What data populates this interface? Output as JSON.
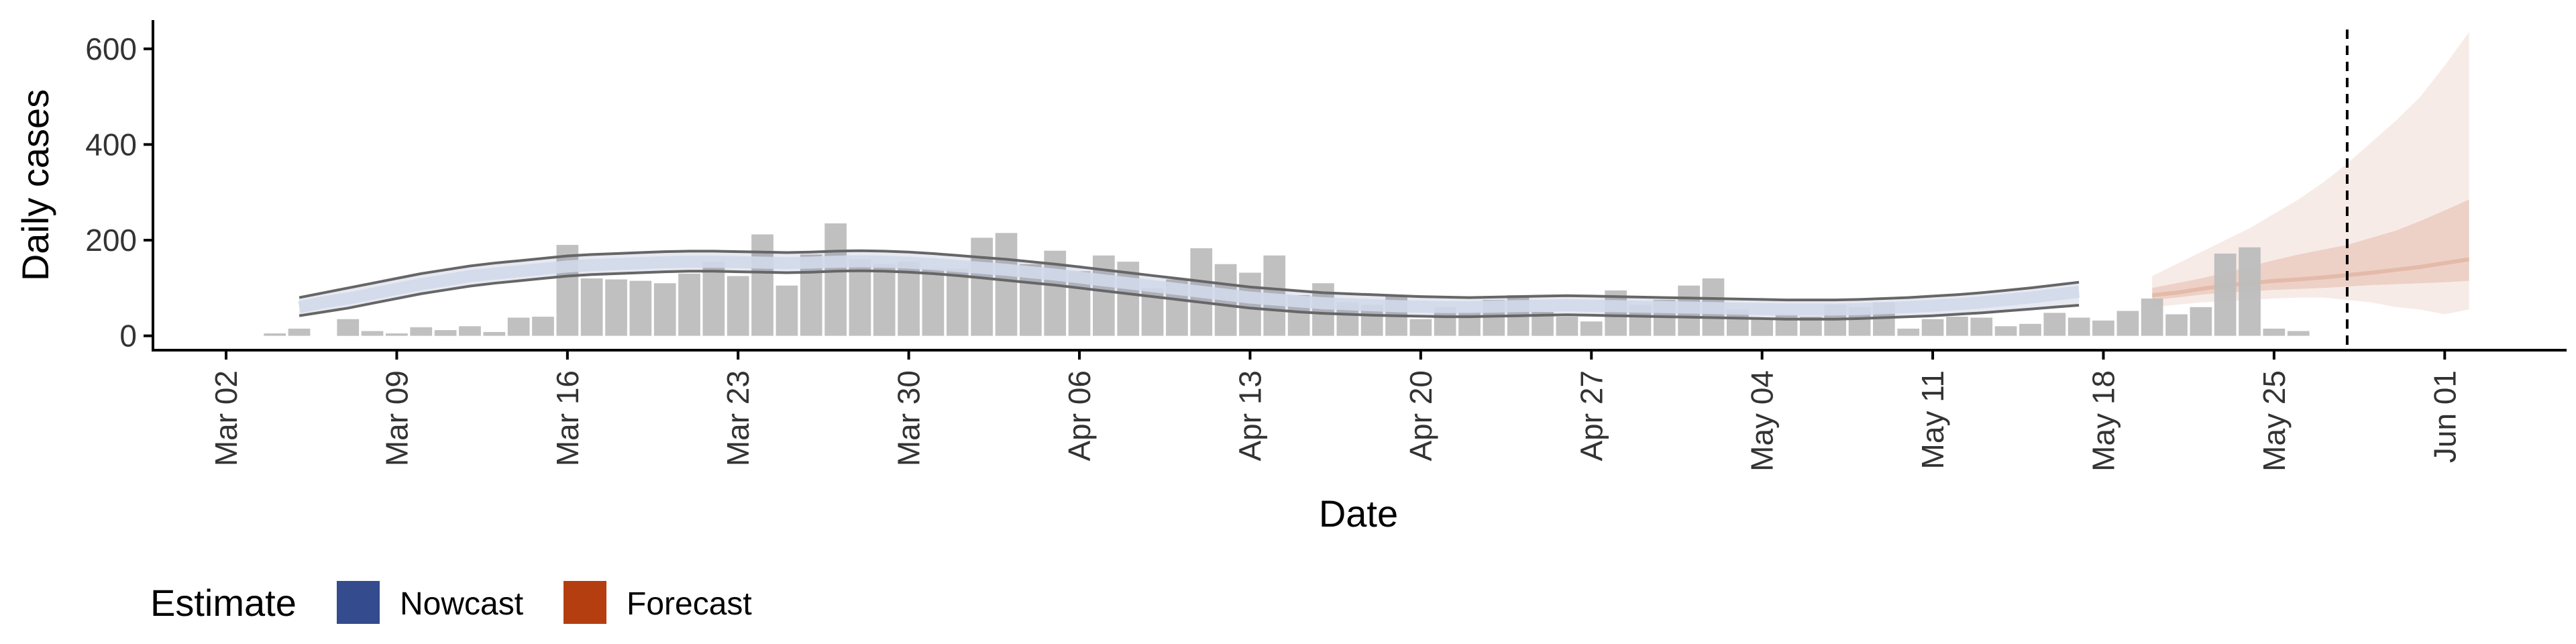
{
  "chart_data": {
    "type": "bar",
    "title": "",
    "xlabel": "Date",
    "ylabel": "Daily cases",
    "x_domain": [
      "2020-02-28",
      "2020-06-06"
    ],
    "ylim": [
      -30,
      660
    ],
    "yticks": [
      0,
      200,
      400,
      600
    ],
    "xticks": [
      {
        "date": "2020-03-02",
        "label": "Mar 02"
      },
      {
        "date": "2020-03-09",
        "label": "Mar 09"
      },
      {
        "date": "2020-03-16",
        "label": "Mar 16"
      },
      {
        "date": "2020-03-23",
        "label": "Mar 23"
      },
      {
        "date": "2020-03-30",
        "label": "Mar 30"
      },
      {
        "date": "2020-04-06",
        "label": "Apr 06"
      },
      {
        "date": "2020-04-13",
        "label": "Apr 13"
      },
      {
        "date": "2020-04-20",
        "label": "Apr 20"
      },
      {
        "date": "2020-04-27",
        "label": "Apr 27"
      },
      {
        "date": "2020-05-04",
        "label": "May 04"
      },
      {
        "date": "2020-05-11",
        "label": "May 11"
      },
      {
        "date": "2020-05-18",
        "label": "May 18"
      },
      {
        "date": "2020-05-25",
        "label": "May 25"
      },
      {
        "date": "2020-06-01",
        "label": "Jun 01"
      }
    ],
    "cases": {
      "start_date": "2020-03-04",
      "values": [
        5,
        15,
        0,
        35,
        10,
        5,
        18,
        12,
        20,
        8,
        38,
        40,
        190,
        120,
        118,
        115,
        110,
        130,
        155,
        125,
        212,
        105,
        170,
        235,
        160,
        150,
        155,
        140,
        140,
        205,
        215,
        150,
        178,
        135,
        168,
        155,
        100,
        118,
        183,
        150,
        132,
        168,
        85,
        110,
        70,
        65,
        85,
        35,
        60,
        50,
        75,
        85,
        50,
        40,
        30,
        95,
        65,
        75,
        105,
        120,
        55,
        35,
        45,
        40,
        65,
        60,
        70,
        15,
        35,
        40,
        38,
        20,
        25,
        48,
        38,
        32,
        52,
        78,
        45,
        60,
        172,
        185,
        15,
        10
      ]
    },
    "nowcast": {
      "start_date": "2020-03-05",
      "median": [
        60,
        70,
        78,
        88,
        98,
        108,
        116,
        125,
        130,
        135,
        140,
        145,
        148,
        150,
        152,
        154,
        155,
        155,
        154,
        153,
        152,
        153,
        155,
        156,
        155,
        153,
        150,
        146,
        142,
        138,
        133,
        128,
        122,
        116,
        110,
        104,
        98,
        92,
        86,
        80,
        76,
        72,
        68,
        66,
        64,
        62,
        61,
        60,
        60,
        61,
        62,
        63,
        64,
        63,
        62,
        61,
        60,
        59,
        58,
        57,
        56,
        55,
        55,
        55,
        56,
        58,
        60,
        63,
        66,
        70,
        75,
        80,
        86,
        92
      ],
      "lower_90": [
        42,
        50,
        58,
        68,
        78,
        88,
        96,
        104,
        110,
        115,
        120,
        125,
        128,
        130,
        132,
        134,
        135,
        135,
        134,
        133,
        132,
        133,
        135,
        136,
        135,
        133,
        130,
        126,
        121,
        116,
        111,
        106,
        100,
        94,
        88,
        82,
        76,
        70,
        64,
        58,
        54,
        50,
        47,
        45,
        43,
        42,
        41,
        40,
        40,
        41,
        42,
        43,
        44,
        43,
        42,
        41,
        40,
        39,
        38,
        37,
        36,
        35,
        35,
        35,
        36,
        38,
        40,
        42,
        45,
        48,
        52,
        56,
        60,
        64
      ],
      "upper_90": [
        80,
        90,
        100,
        110,
        120,
        130,
        138,
        146,
        152,
        157,
        162,
        167,
        170,
        172,
        174,
        176,
        177,
        177,
        176,
        175,
        174,
        175,
        177,
        178,
        177,
        175,
        172,
        168,
        164,
        160,
        155,
        150,
        144,
        138,
        132,
        126,
        120,
        114,
        108,
        102,
        98,
        94,
        90,
        88,
        86,
        84,
        82,
        81,
        80,
        81,
        82,
        83,
        84,
        83,
        82,
        81,
        80,
        79,
        78,
        77,
        76,
        75,
        75,
        75,
        76,
        78,
        80,
        83,
        86,
        90,
        95,
        100,
        106,
        112
      ]
    },
    "forecast": {
      "start_date": "2020-05-20",
      "median": [
        85,
        90,
        98,
        105,
        110,
        115,
        118,
        122,
        127,
        132,
        138,
        144,
        152,
        160
      ],
      "lower_50": [
        75,
        80,
        86,
        90,
        93,
        96,
        98,
        100,
        103,
        106,
        108,
        110,
        112,
        115
      ],
      "upper_50": [
        100,
        110,
        120,
        132,
        145,
        158,
        170,
        180,
        190,
        205,
        220,
        240,
        262,
        285
      ],
      "lower_90": [
        60,
        65,
        70,
        72,
        75,
        78,
        80,
        80,
        75,
        70,
        60,
        55,
        45,
        55
      ],
      "upper_90": [
        125,
        150,
        175,
        200,
        225,
        255,
        285,
        320,
        360,
        405,
        450,
        500,
        565,
        635
      ]
    },
    "vline_date": "2020-05-28",
    "legend": {
      "title": "Estimate",
      "position": "bottom-left",
      "items": [
        {
          "label": "Nowcast",
          "color": "#344C8E"
        },
        {
          "label": "Forecast",
          "color": "#B53E10"
        }
      ]
    },
    "colors": {
      "bars": "#BDBDBD",
      "nowcast": "#344C8E",
      "forecast": "#B53E10",
      "interval_line": "#666666",
      "axis": "#000000"
    }
  }
}
